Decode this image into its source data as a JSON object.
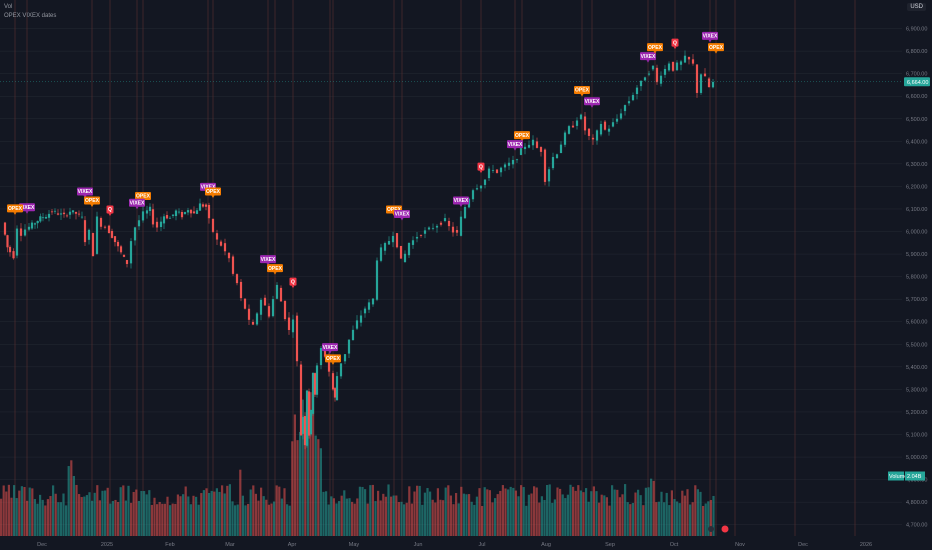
{
  "legend": {
    "line1": "Vol",
    "line2": "OPEX VIXEX dates"
  },
  "currency": "USD",
  "colors": {
    "bg": "#131722",
    "up": "#26a69a",
    "down": "#ef5350",
    "vix": "#9c27b0",
    "opex": "#f57c00",
    "q": "#f23645",
    "grid": "#2a2e39",
    "vline": "#5b2f2f"
  },
  "chart_data": {
    "type": "candlestick",
    "price_axis": {
      "min": 4650,
      "max": 7000,
      "ticks": [
        "4,700.00",
        "4,800.00",
        "4,900.00",
        "5,000.00",
        "5,100.00",
        "5,200.00",
        "5,300.00",
        "5,400.00",
        "5,500.00",
        "5,600.00",
        "5,700.00",
        "5,800.00",
        "5,900.00",
        "6,000.00",
        "6,100.00",
        "6,200.00",
        "6,300.00",
        "6,400.00",
        "6,500.00",
        "6,600.00",
        "6,700.00",
        "6,800.00",
        "6,900.00"
      ]
    },
    "time_axis": [
      "Dec",
      "2025",
      "Feb",
      "Mar",
      "Apr",
      "May",
      "Jun",
      "Jul",
      "Aug",
      "Sep",
      "Oct",
      "Nov",
      "Dec",
      "2026"
    ],
    "last_price": "6,664.00",
    "volume_label": "Volume",
    "volume_value": "2.04B",
    "price_path": [
      [
        0,
        6040
      ],
      [
        5,
        5930
      ],
      [
        12,
        5890
      ],
      [
        16,
        6020
      ],
      [
        20,
        5990
      ],
      [
        24,
        6010
      ],
      [
        30,
        6030
      ],
      [
        38,
        6060
      ],
      [
        44,
        6070
      ],
      [
        50,
        6090
      ],
      [
        56,
        6080
      ],
      [
        62,
        6070
      ],
      [
        68,
        6090
      ],
      [
        74,
        6080
      ],
      [
        80,
        6060
      ],
      [
        84,
        5960
      ],
      [
        88,
        6000
      ],
      [
        92,
        5900
      ],
      [
        96,
        6060
      ],
      [
        100,
        6030
      ],
      [
        104,
        6020
      ],
      [
        110,
        5980
      ],
      [
        116,
        5930
      ],
      [
        122,
        5880
      ],
      [
        126,
        5860
      ],
      [
        130,
        5960
      ],
      [
        134,
        6020
      ],
      [
        138,
        6050
      ],
      [
        142,
        6080
      ],
      [
        148,
        6100
      ],
      [
        152,
        6040
      ],
      [
        156,
        6020
      ],
      [
        162,
        6070
      ],
      [
        168,
        6060
      ],
      [
        174,
        6090
      ],
      [
        180,
        6070
      ],
      [
        186,
        6100
      ],
      [
        192,
        6080
      ],
      [
        198,
        6120
      ],
      [
        204,
        6110
      ],
      [
        208,
        6050
      ],
      [
        212,
        6000
      ],
      [
        216,
        5960
      ],
      [
        220,
        5940
      ],
      [
        224,
        5910
      ],
      [
        228,
        5880
      ],
      [
        232,
        5810
      ],
      [
        236,
        5770
      ],
      [
        240,
        5700
      ],
      [
        244,
        5660
      ],
      [
        248,
        5600
      ],
      [
        252,
        5580
      ],
      [
        256,
        5640
      ],
      [
        260,
        5700
      ],
      [
        264,
        5670
      ],
      [
        268,
        5630
      ],
      [
        272,
        5700
      ],
      [
        276,
        5760
      ],
      [
        280,
        5690
      ],
      [
        284,
        5620
      ],
      [
        288,
        5560
      ],
      [
        292,
        5620
      ],
      [
        296,
        5420
      ],
      [
        298,
        5100
      ],
      [
        300,
        5180
      ],
      [
        302,
        5060
      ],
      [
        304,
        5300
      ],
      [
        306,
        5100
      ],
      [
        308,
        5200
      ],
      [
        310,
        5380
      ],
      [
        312,
        5280
      ],
      [
        316,
        5400
      ],
      [
        320,
        5480
      ],
      [
        324,
        5450
      ],
      [
        328,
        5380
      ],
      [
        330,
        5300
      ],
      [
        332,
        5260
      ],
      [
        336,
        5360
      ],
      [
        340,
        5420
      ],
      [
        344,
        5460
      ],
      [
        348,
        5520
      ],
      [
        352,
        5560
      ],
      [
        356,
        5600
      ],
      [
        360,
        5630
      ],
      [
        364,
        5660
      ],
      [
        368,
        5680
      ],
      [
        372,
        5700
      ],
      [
        376,
        5880
      ],
      [
        380,
        5920
      ],
      [
        384,
        5940
      ],
      [
        388,
        5960
      ],
      [
        392,
        5990
      ],
      [
        396,
        5940
      ],
      [
        400,
        5870
      ],
      [
        404,
        5900
      ],
      [
        408,
        5950
      ],
      [
        412,
        5960
      ],
      [
        416,
        5980
      ],
      [
        420,
        5990
      ],
      [
        424,
        6000
      ],
      [
        428,
        6010
      ],
      [
        432,
        6020
      ],
      [
        436,
        6030
      ],
      [
        440,
        6040
      ],
      [
        444,
        6050
      ],
      [
        448,
        6020
      ],
      [
        452,
        6000
      ],
      [
        456,
        5990
      ],
      [
        460,
        6060
      ],
      [
        464,
        6110
      ],
      [
        468,
        6150
      ],
      [
        472,
        6190
      ],
      [
        476,
        6200
      ],
      [
        480,
        6210
      ],
      [
        484,
        6230
      ],
      [
        488,
        6270
      ],
      [
        492,
        6280
      ],
      [
        496,
        6260
      ],
      [
        500,
        6280
      ],
      [
        504,
        6290
      ],
      [
        508,
        6300
      ],
      [
        512,
        6310
      ],
      [
        516,
        6330
      ],
      [
        520,
        6360
      ],
      [
        524,
        6380
      ],
      [
        528,
        6390
      ],
      [
        532,
        6400
      ],
      [
        536,
        6370
      ],
      [
        540,
        6360
      ],
      [
        544,
        6230
      ],
      [
        548,
        6280
      ],
      [
        552,
        6330
      ],
      [
        556,
        6350
      ],
      [
        560,
        6390
      ],
      [
        564,
        6430
      ],
      [
        568,
        6460
      ],
      [
        572,
        6470
      ],
      [
        576,
        6500
      ],
      [
        580,
        6510
      ],
      [
        584,
        6450
      ],
      [
        588,
        6420
      ],
      [
        592,
        6400
      ],
      [
        596,
        6440
      ],
      [
        600,
        6480
      ],
      [
        604,
        6450
      ],
      [
        608,
        6460
      ],
      [
        612,
        6480
      ],
      [
        616,
        6500
      ],
      [
        620,
        6530
      ],
      [
        624,
        6560
      ],
      [
        628,
        6580
      ],
      [
        632,
        6610
      ],
      [
        636,
        6640
      ],
      [
        640,
        6660
      ],
      [
        644,
        6690
      ],
      [
        648,
        6710
      ],
      [
        652,
        6730
      ],
      [
        656,
        6660
      ],
      [
        660,
        6700
      ],
      [
        664,
        6720
      ],
      [
        668,
        6750
      ],
      [
        672,
        6720
      ],
      [
        676,
        6740
      ],
      [
        680,
        6750
      ],
      [
        684,
        6770
      ],
      [
        688,
        6760
      ],
      [
        692,
        6740
      ],
      [
        696,
        6620
      ],
      [
        700,
        6700
      ],
      [
        704,
        6680
      ],
      [
        708,
        6640
      ],
      [
        712,
        6660
      ]
    ],
    "events": [
      {
        "type": "VIX",
        "label": "VIXEX",
        "x": 22,
        "price": 6090
      },
      {
        "type": "OPEX",
        "label": "OPEX",
        "x": 10,
        "price": 6085
      },
      {
        "type": "VIX",
        "label": "VIXEX",
        "x": 80,
        "price": 6160
      },
      {
        "type": "OPEX",
        "label": "OPEX",
        "x": 87,
        "price": 6120
      },
      {
        "type": "Q",
        "label": "Q",
        "x": 105,
        "price": 6080
      },
      {
        "type": "OPEX",
        "label": "OPEX",
        "x": 138,
        "price": 6140
      },
      {
        "type": "VIX",
        "label": "VIXEX",
        "x": 132,
        "price": 6110
      },
      {
        "type": "VIX",
        "label": "VIXEX",
        "x": 203,
        "price": 6180
      },
      {
        "type": "OPEX",
        "label": "OPEX",
        "x": 208,
        "price": 6160
      },
      {
        "type": "VIX",
        "label": "VIXEX",
        "x": 263,
        "price": 5860
      },
      {
        "type": "OPEX",
        "label": "OPEX",
        "x": 270,
        "price": 5820
      },
      {
        "type": "Q",
        "label": "Q",
        "x": 288,
        "price": 5760
      },
      {
        "type": "VIX",
        "label": "VIXEX",
        "x": 325,
        "price": 5470
      },
      {
        "type": "OPEX",
        "label": "OPEX",
        "x": 328,
        "price": 5420
      },
      {
        "type": "OPEX",
        "label": "OPEX",
        "x": 389,
        "price": 6080
      },
      {
        "type": "VIX",
        "label": "VIXEX",
        "x": 397,
        "price": 6060
      },
      {
        "type": "VIX",
        "label": "VIXEX",
        "x": 456,
        "price": 6120
      },
      {
        "type": "Q",
        "label": "Q",
        "x": 476,
        "price": 6270
      },
      {
        "type": "OPEX",
        "label": "OPEX",
        "x": 517,
        "price": 6410
      },
      {
        "type": "VIX",
        "label": "VIXEX",
        "x": 510,
        "price": 6370
      },
      {
        "type": "OPEX",
        "label": "OPEX",
        "x": 577,
        "price": 6610
      },
      {
        "type": "VIX",
        "label": "VIXEX",
        "x": 587,
        "price": 6560
      },
      {
        "type": "VIX",
        "label": "VIXEX",
        "x": 643,
        "price": 6760
      },
      {
        "type": "OPEX",
        "label": "OPEX",
        "x": 650,
        "price": 6800
      },
      {
        "type": "Q",
        "label": "Q",
        "x": 670,
        "price": 6820
      },
      {
        "type": "VIX",
        "label": "VIXEX",
        "x": 705,
        "price": 6850
      },
      {
        "type": "OPEX",
        "label": "OPEX",
        "x": 711,
        "price": 6800
      }
    ],
    "vlines": [
      10,
      22,
      87,
      105,
      138,
      132,
      208,
      203,
      270,
      263,
      288,
      328,
      325,
      389,
      397,
      456,
      476,
      517,
      510,
      577,
      587,
      650,
      643,
      670,
      711,
      705,
      730,
      790,
      850
    ]
  }
}
